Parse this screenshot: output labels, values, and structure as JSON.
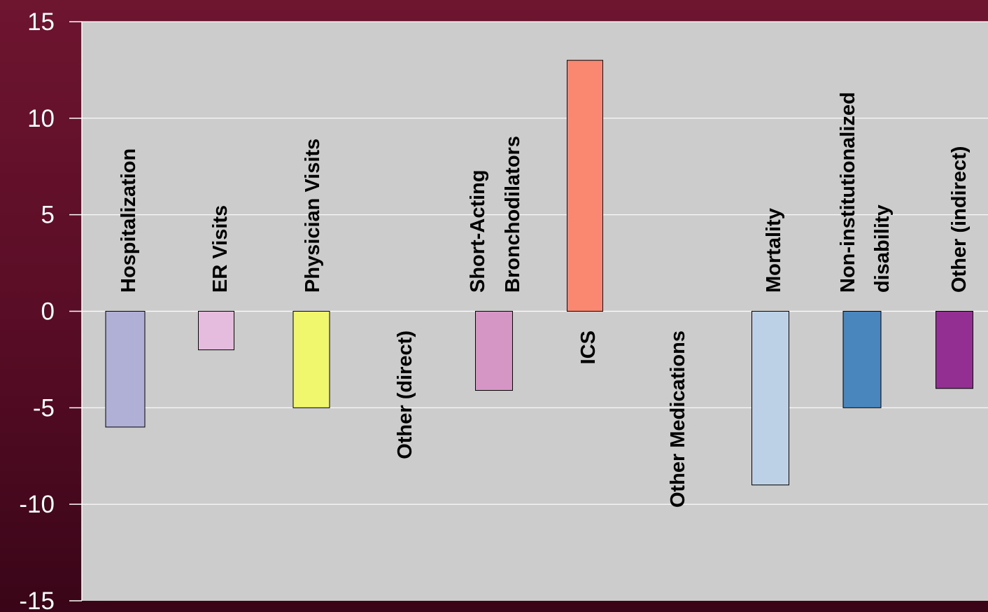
{
  "chart_data": {
    "type": "bar",
    "title": "",
    "xlabel": "",
    "ylabel": "",
    "ylim": [
      -15,
      15
    ],
    "yticks": [
      "15",
      "10",
      "5",
      "0",
      "-5",
      "-10",
      "-15"
    ],
    "grid": true,
    "legend": "none",
    "categories": [
      "Hospitalization",
      "ER Visits",
      "Physician Visits",
      "Other (direct)",
      "Short-Acting Bronchodilators",
      "ICS",
      "Other Medications",
      "Mortality",
      "Non-institutionalized disability",
      "Other (indirect)"
    ],
    "values": [
      -6,
      -2,
      -5,
      0,
      -4.1,
      13,
      0,
      -9,
      -5,
      -4
    ],
    "colors": [
      "#b0b0d6",
      "#e6bcde",
      "#f1f76c",
      "#cccccc",
      "#d596c6",
      "#fa8870",
      "#cccccc",
      "#bcd1e6",
      "#4a86be",
      "#932f93"
    ]
  }
}
